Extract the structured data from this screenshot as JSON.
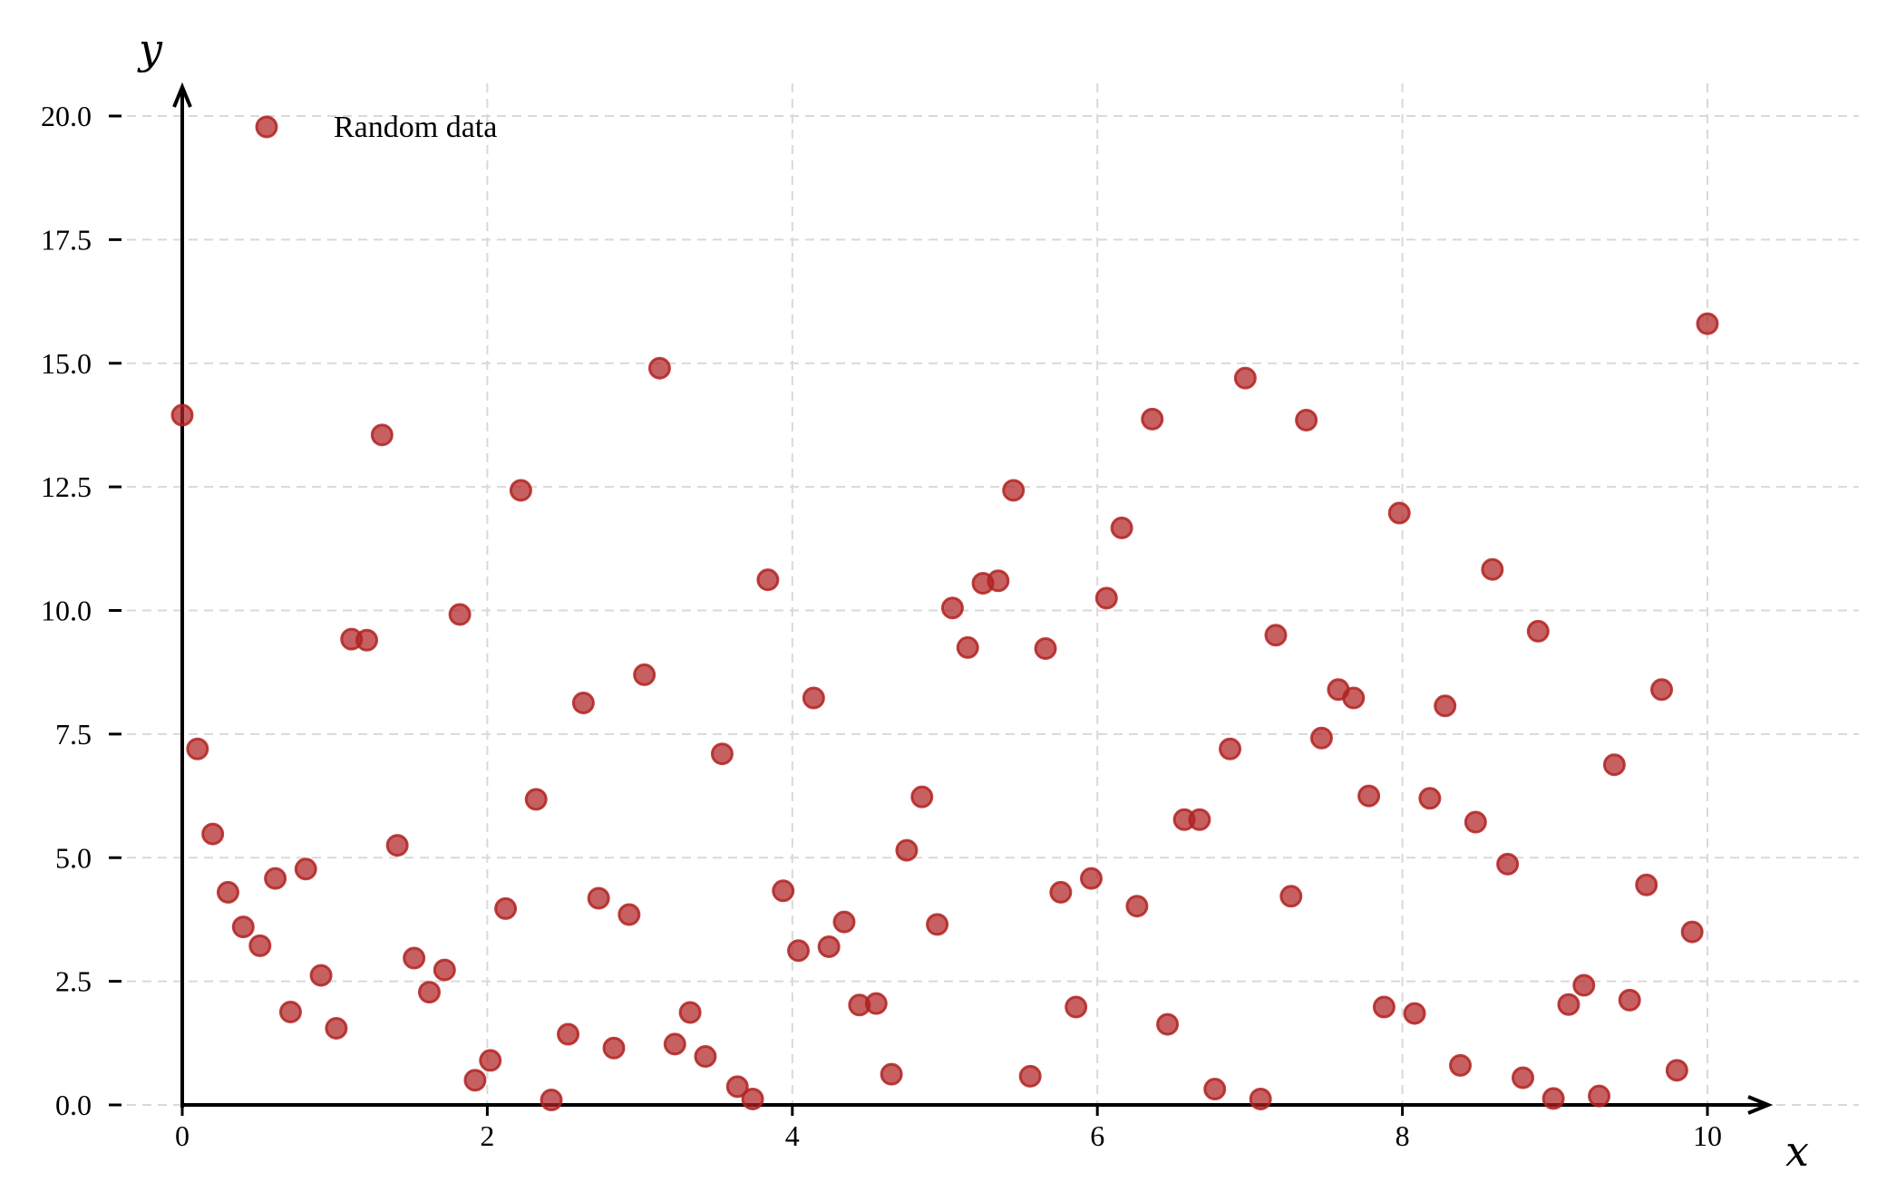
{
  "chart_data": {
    "type": "scatter",
    "title": "",
    "xlabel": "x",
    "ylabel": "y",
    "xlim": [
      0,
      10
    ],
    "ylim": [
      0,
      20
    ],
    "xticks": [
      "0",
      "2",
      "4",
      "6",
      "8",
      "10"
    ],
    "yticks": [
      "0.0",
      "2.5",
      "5.0",
      "7.5",
      "10.0",
      "12.5",
      "15.0",
      "17.5",
      "20.0"
    ],
    "grid": true,
    "legend_position": "top-left",
    "series": [
      {
        "name": "Random data",
        "color": "#b22222",
        "points": [
          [
            0.0,
            13.95
          ],
          [
            0.1,
            7.2
          ],
          [
            0.2,
            5.48
          ],
          [
            0.3,
            4.3
          ],
          [
            0.4,
            3.6
          ],
          [
            0.51,
            3.22
          ],
          [
            0.61,
            4.58
          ],
          [
            0.71,
            1.88
          ],
          [
            0.81,
            4.77
          ],
          [
            0.91,
            2.62
          ],
          [
            1.01,
            1.55
          ],
          [
            1.11,
            9.42
          ],
          [
            1.21,
            9.4
          ],
          [
            1.31,
            13.55
          ],
          [
            1.41,
            5.25
          ],
          [
            1.52,
            2.97
          ],
          [
            1.62,
            2.28
          ],
          [
            1.72,
            2.73
          ],
          [
            1.82,
            9.92
          ],
          [
            1.92,
            0.5
          ],
          [
            2.02,
            0.9
          ],
          [
            2.12,
            3.97
          ],
          [
            2.22,
            12.43
          ],
          [
            2.32,
            6.18
          ],
          [
            2.42,
            0.1
          ],
          [
            2.53,
            1.43
          ],
          [
            2.63,
            8.13
          ],
          [
            2.73,
            4.18
          ],
          [
            2.83,
            1.15
          ],
          [
            2.93,
            3.85
          ],
          [
            3.03,
            8.7
          ],
          [
            3.13,
            14.9
          ],
          [
            3.23,
            1.23
          ],
          [
            3.33,
            1.87
          ],
          [
            3.43,
            0.98
          ],
          [
            3.54,
            7.1
          ],
          [
            3.64,
            0.37
          ],
          [
            3.74,
            0.12
          ],
          [
            3.84,
            10.62
          ],
          [
            3.94,
            4.33
          ],
          [
            4.04,
            3.12
          ],
          [
            4.14,
            8.23
          ],
          [
            4.24,
            3.2
          ],
          [
            4.34,
            3.7
          ],
          [
            4.44,
            2.02
          ],
          [
            4.55,
            2.05
          ],
          [
            4.65,
            0.62
          ],
          [
            4.75,
            5.15
          ],
          [
            4.85,
            6.23
          ],
          [
            4.95,
            3.65
          ],
          [
            5.05,
            10.05
          ],
          [
            5.15,
            9.25
          ],
          [
            5.25,
            10.55
          ],
          [
            5.35,
            10.6
          ],
          [
            5.45,
            12.43
          ],
          [
            5.56,
            0.58
          ],
          [
            5.66,
            9.23
          ],
          [
            5.76,
            4.3
          ],
          [
            5.86,
            1.98
          ],
          [
            5.96,
            4.58
          ],
          [
            6.06,
            10.25
          ],
          [
            6.16,
            11.67
          ],
          [
            6.26,
            4.02
          ],
          [
            6.36,
            13.87
          ],
          [
            6.46,
            1.63
          ],
          [
            6.57,
            5.77
          ],
          [
            6.67,
            5.77
          ],
          [
            6.77,
            0.32
          ],
          [
            6.87,
            7.2
          ],
          [
            6.97,
            14.7
          ],
          [
            7.07,
            0.12
          ],
          [
            7.17,
            9.5
          ],
          [
            7.27,
            4.22
          ],
          [
            7.37,
            13.85
          ],
          [
            7.47,
            7.42
          ],
          [
            7.58,
            8.4
          ],
          [
            7.68,
            8.23
          ],
          [
            7.78,
            6.25
          ],
          [
            7.88,
            1.98
          ],
          [
            7.98,
            11.97
          ],
          [
            8.08,
            1.85
          ],
          [
            8.18,
            6.2
          ],
          [
            8.28,
            8.07
          ],
          [
            8.38,
            0.8
          ],
          [
            8.48,
            5.72
          ],
          [
            8.59,
            10.83
          ],
          [
            8.69,
            4.87
          ],
          [
            8.79,
            0.55
          ],
          [
            8.89,
            9.58
          ],
          [
            8.99,
            0.13
          ],
          [
            9.09,
            2.03
          ],
          [
            9.19,
            2.42
          ],
          [
            9.29,
            0.18
          ],
          [
            9.39,
            6.88
          ],
          [
            9.49,
            2.12
          ],
          [
            9.6,
            4.45
          ],
          [
            9.7,
            8.4
          ],
          [
            9.8,
            0.7
          ],
          [
            9.9,
            3.5
          ],
          [
            10.0,
            15.8
          ]
        ]
      }
    ]
  }
}
